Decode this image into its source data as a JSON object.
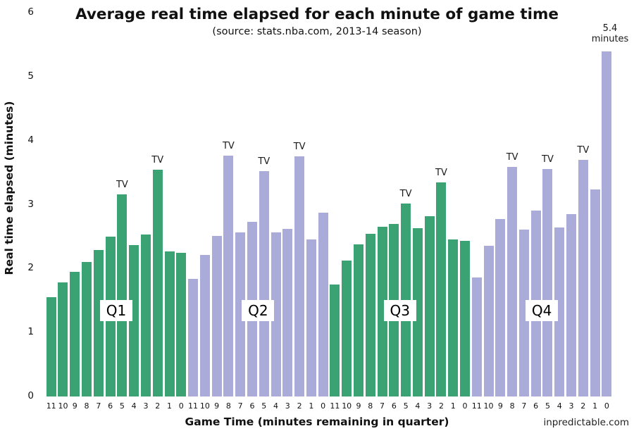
{
  "title": "Average real time elapsed for each minute of game time",
  "subtitle": "(source: stats.nba.com, 2013-14 season)",
  "credit": "inpredictable.com",
  "annotation": {
    "line1": "5.4",
    "line2": "minutes"
  },
  "tv_label": "TV",
  "chart_data": {
    "type": "bar",
    "title": "Average real time elapsed for each minute of game time",
    "subtitle": "(source: stats.nba.com, 2013-14 season)",
    "xlabel": "Game Time (minutes remaining in quarter)",
    "ylabel": "Real time elapsed (minutes)",
    "ylim": [
      0,
      6
    ],
    "yticks": [
      0,
      1,
      2,
      3,
      4,
      5,
      6
    ],
    "grid": false,
    "legend": "none",
    "annotation": {
      "text": "5.4 minutes",
      "target": "Q4, 0 minutes remaining"
    },
    "quarters": [
      {
        "label": "Q1",
        "color": "#3BA274",
        "minutes_remaining": [
          11,
          10,
          9,
          8,
          7,
          6,
          5,
          4,
          3,
          2,
          1,
          0
        ],
        "values": [
          1.55,
          1.78,
          1.95,
          2.1,
          2.29,
          2.5,
          3.16,
          2.37,
          2.53,
          3.54,
          2.27,
          2.25
        ],
        "tv_timeout_minutes": [
          5,
          2
        ]
      },
      {
        "label": "Q2",
        "color": "#ABABD9",
        "minutes_remaining": [
          11,
          10,
          9,
          8,
          7,
          6,
          5,
          4,
          3,
          2,
          1,
          0
        ],
        "values": [
          1.84,
          2.21,
          2.51,
          3.76,
          2.57,
          2.73,
          3.52,
          2.56,
          2.62,
          3.75,
          2.46,
          2.87
        ],
        "tv_timeout_minutes": [
          8,
          5,
          2
        ]
      },
      {
        "label": "Q3",
        "color": "#3BA274",
        "minutes_remaining": [
          11,
          10,
          9,
          8,
          7,
          6,
          5,
          4,
          3,
          2,
          1,
          0
        ],
        "values": [
          1.75,
          2.13,
          2.38,
          2.54,
          2.65,
          2.7,
          3.02,
          2.63,
          2.82,
          3.35,
          2.46,
          2.43
        ],
        "tv_timeout_minutes": [
          5,
          2
        ]
      },
      {
        "label": "Q4",
        "color": "#ABABD9",
        "minutes_remaining": [
          11,
          10,
          9,
          8,
          7,
          6,
          5,
          4,
          3,
          2,
          1,
          0
        ],
        "values": [
          1.86,
          2.36,
          2.77,
          3.59,
          2.61,
          2.91,
          3.56,
          2.64,
          2.85,
          3.7,
          3.24,
          5.4
        ],
        "tv_timeout_minutes": [
          8,
          5,
          2
        ]
      }
    ]
  }
}
